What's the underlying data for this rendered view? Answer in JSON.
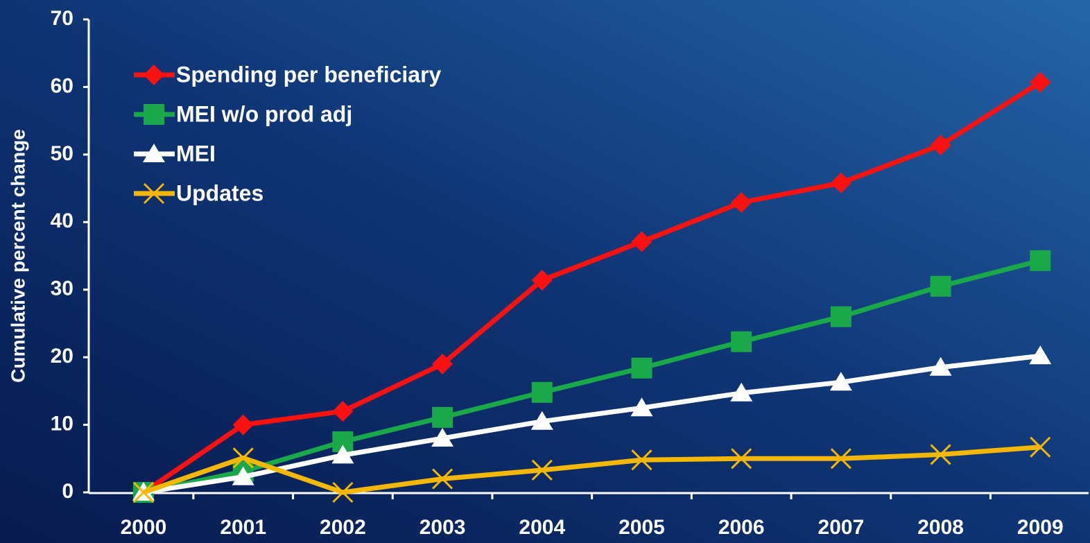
{
  "chart_data": {
    "type": "line",
    "y_label": "Cumulative percent change",
    "categories": [
      "2000",
      "2001",
      "2002",
      "2003",
      "2004",
      "2005",
      "2006",
      "2007",
      "2008",
      "2009"
    ],
    "series": [
      {
        "name": "Spending per beneficiary",
        "color": "#ff1010",
        "marker": "diamond",
        "values": [
          0,
          10,
          12,
          19,
          31.4,
          37.1,
          42.9,
          45.8,
          51.4,
          60.7
        ]
      },
      {
        "name": "MEI w/o prod adj",
        "color": "#1aa84a",
        "marker": "square",
        "values": [
          0,
          3.1,
          7.5,
          11.1,
          14.8,
          18.4,
          22.3,
          26,
          30.5,
          34.3
        ]
      },
      {
        "name": "MEI",
        "color": "#ffffff",
        "marker": "triangle",
        "values": [
          0,
          2.3,
          5.5,
          8,
          10.5,
          12.5,
          14.7,
          16.3,
          18.5,
          20.2
        ]
      },
      {
        "name": "Updates",
        "color": "#f5b800",
        "marker": "x",
        "values": [
          0,
          5.1,
          0,
          2,
          3.3,
          4.8,
          5,
          5,
          5.6,
          6.7
        ]
      }
    ],
    "ylim": [
      0,
      70
    ],
    "yticks": [
      0,
      10,
      20,
      30,
      40,
      50,
      60,
      70
    ],
    "legend": "upper left"
  }
}
